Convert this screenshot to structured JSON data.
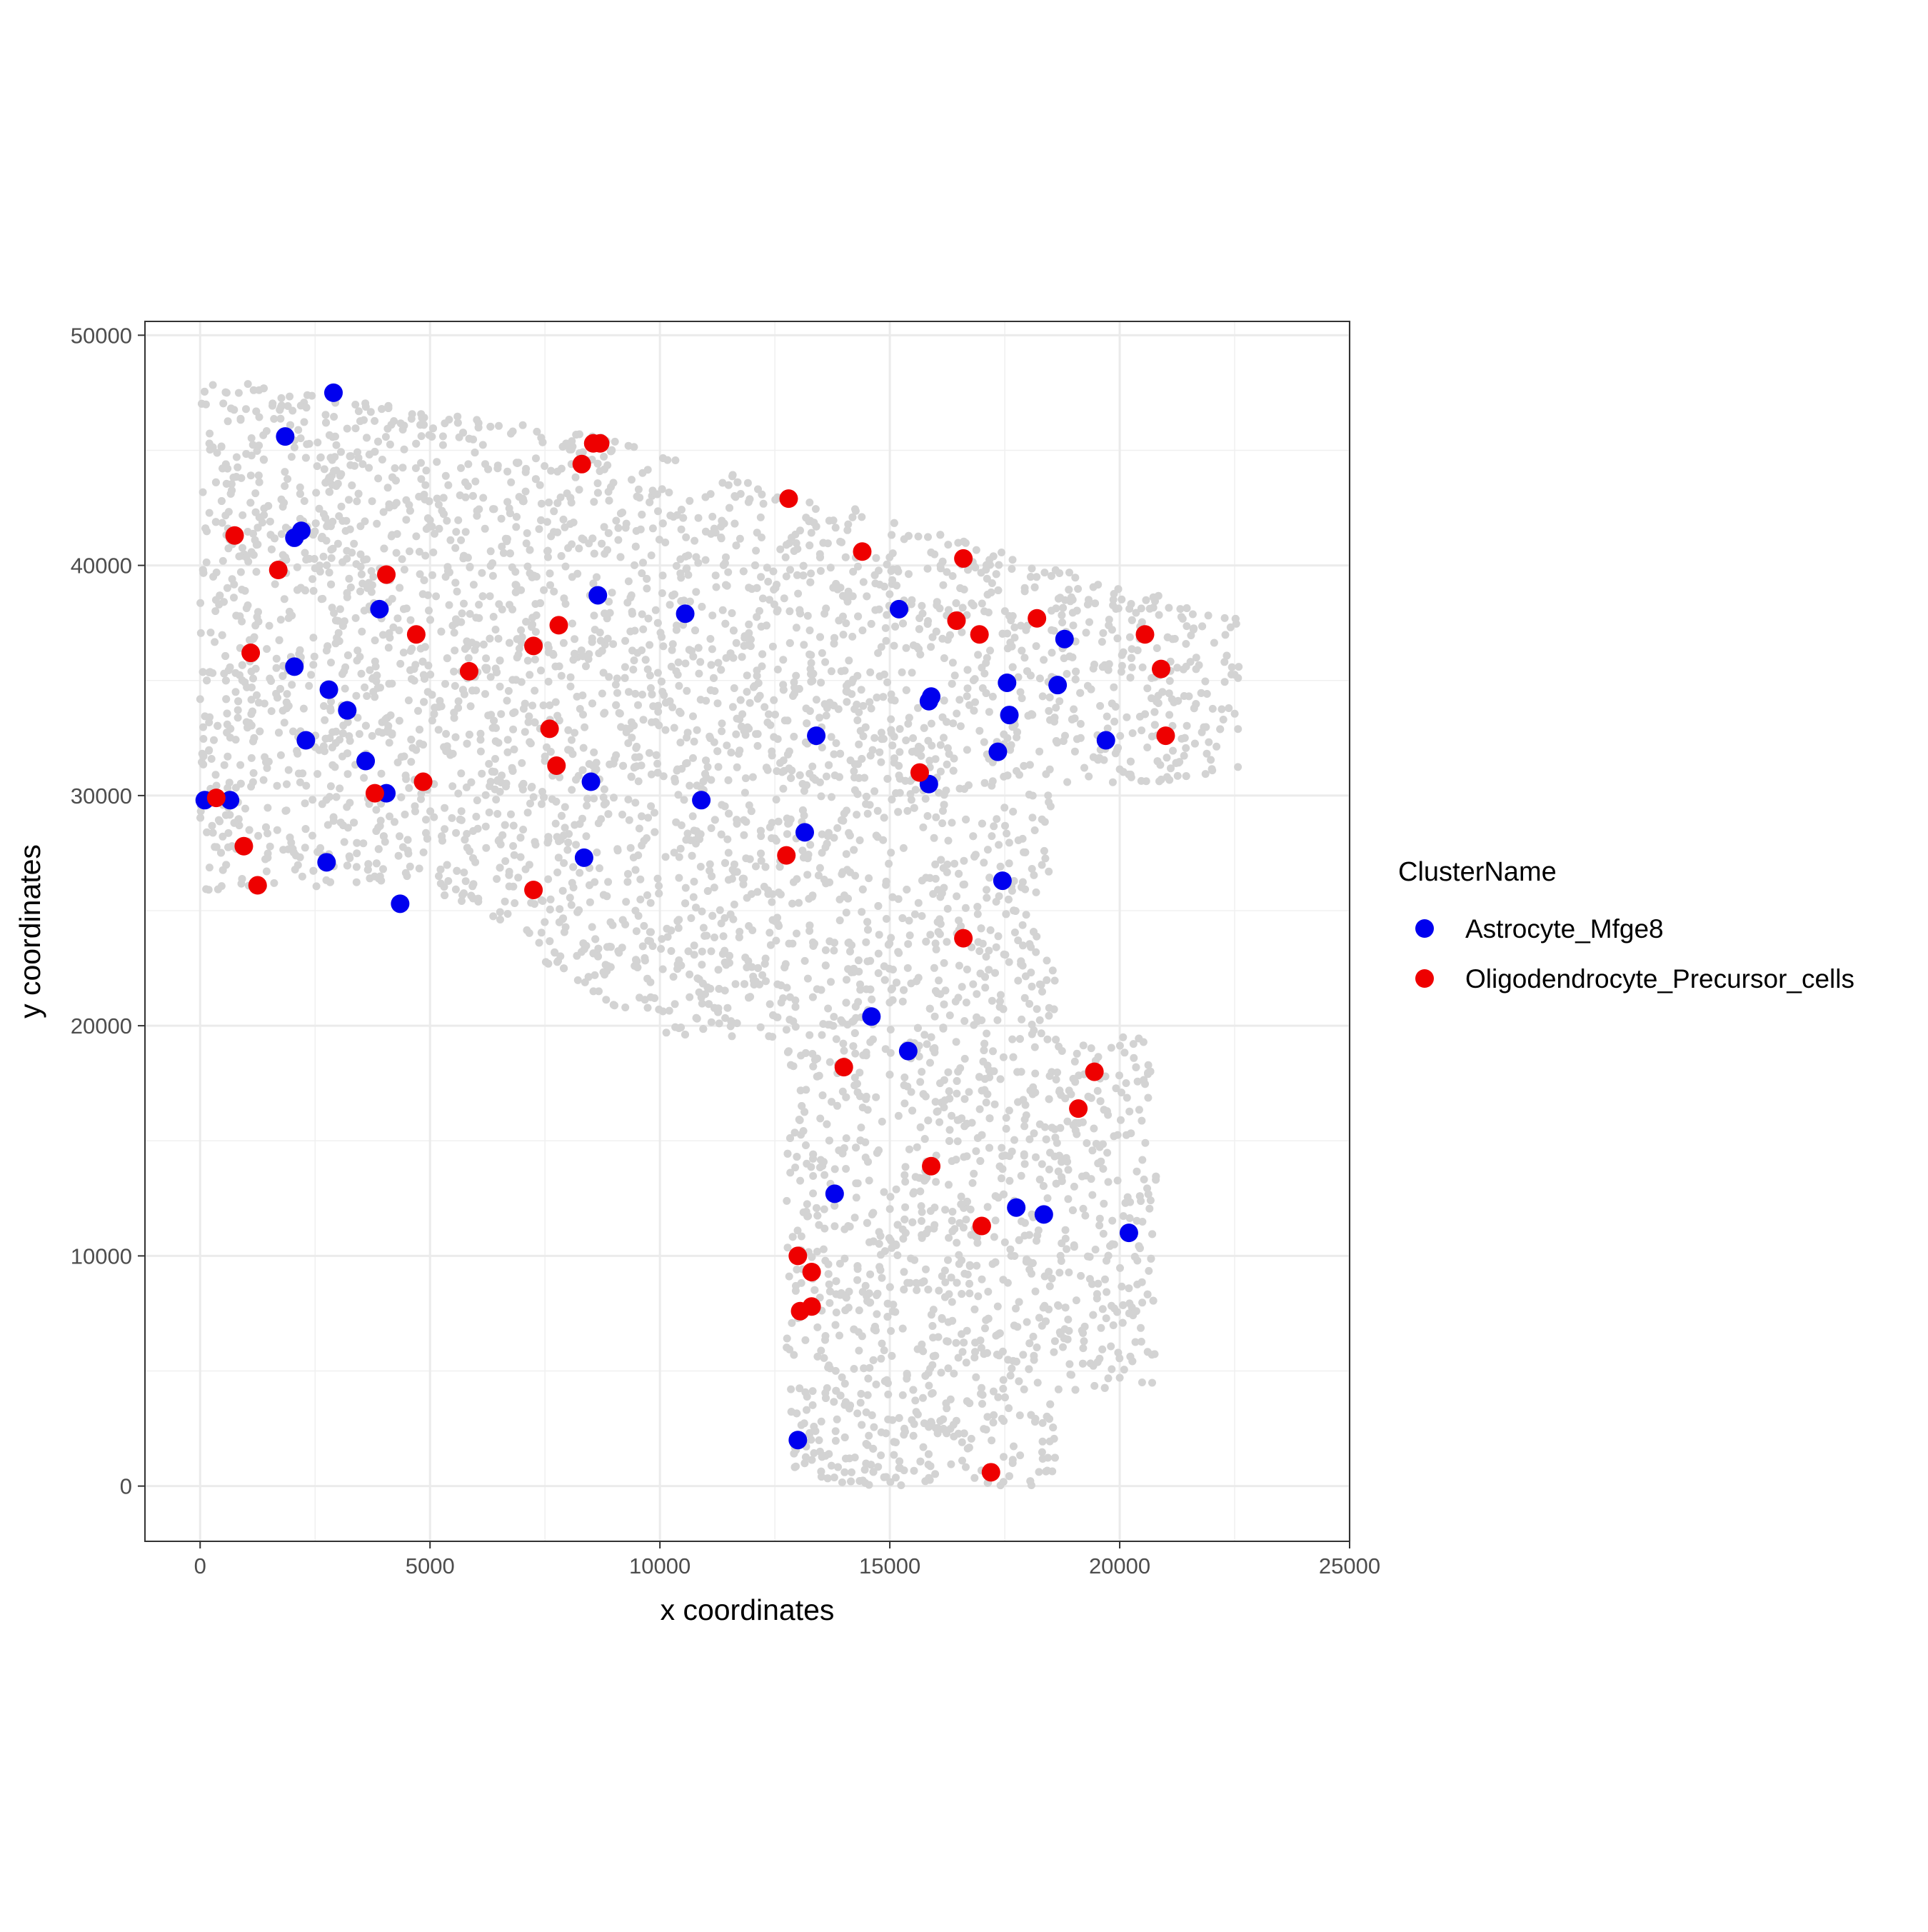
{
  "chart_data": {
    "type": "scatter",
    "title": "",
    "xlabel": "x coordinates",
    "ylabel": "y coordinates",
    "xlim": [
      -1200,
      25000
    ],
    "ylim": [
      -2400,
      50600
    ],
    "x_ticks": [
      0,
      5000,
      10000,
      15000,
      20000,
      25000
    ],
    "x_tick_labels": [
      "0",
      "5000",
      "10000",
      "15000",
      "20000",
      "25000"
    ],
    "y_ticks": [
      0,
      10000,
      20000,
      30000,
      40000,
      50000
    ],
    "y_tick_labels": [
      "0",
      "10000",
      "20000",
      "30000",
      "40000",
      "50000"
    ],
    "grid": true,
    "theme": "bw",
    "background_points_color": "#d3d3d3",
    "legend": {
      "title": "ClusterName",
      "position": "right",
      "entries": [
        "Astrocyte_Mfge8",
        "Oligodendrocyte_Precursor_cells"
      ]
    },
    "series": [
      {
        "name": "Astrocyte_Mfge8",
        "color": "#0000ee",
        "points": [
          [
            2900,
            47500
          ],
          [
            1850,
            45600
          ],
          [
            2200,
            41500
          ],
          [
            2050,
            41200
          ],
          [
            3900,
            38100
          ],
          [
            8650,
            38700
          ],
          [
            10550,
            37900
          ],
          [
            15200,
            38100
          ],
          [
            18800,
            36800
          ],
          [
            17550,
            34900
          ],
          [
            18650,
            34800
          ],
          [
            15900,
            34300
          ],
          [
            15850,
            34100
          ],
          [
            17600,
            33500
          ],
          [
            13400,
            32600
          ],
          [
            19700,
            32400
          ],
          [
            17350,
            31900
          ],
          [
            15850,
            30500
          ],
          [
            2050,
            35600
          ],
          [
            2800,
            34600
          ],
          [
            3200,
            33700
          ],
          [
            2300,
            32400
          ],
          [
            3600,
            31500
          ],
          [
            4050,
            30100
          ],
          [
            100,
            29800
          ],
          [
            650,
            29800
          ],
          [
            8500,
            30600
          ],
          [
            10900,
            29800
          ],
          [
            13150,
            28400
          ],
          [
            2750,
            27100
          ],
          [
            8350,
            27300
          ],
          [
            4350,
            25300
          ],
          [
            17450,
            26300
          ],
          [
            14600,
            20400
          ],
          [
            15400,
            18900
          ],
          [
            13800,
            12700
          ],
          [
            17750,
            12100
          ],
          [
            18350,
            11800
          ],
          [
            20200,
            11000
          ],
          [
            13000,
            2000
          ]
        ]
      },
      {
        "name": "Oligodendrocyte_Precursor_cells",
        "color": "#ee0000",
        "points": [
          [
            8550,
            45300
          ],
          [
            8700,
            45300
          ],
          [
            8300,
            44400
          ],
          [
            12800,
            42900
          ],
          [
            750,
            41300
          ],
          [
            14400,
            40600
          ],
          [
            16600,
            40300
          ],
          [
            1700,
            39800
          ],
          [
            4050,
            39600
          ],
          [
            16450,
            37600
          ],
          [
            18200,
            37700
          ],
          [
            7800,
            37400
          ],
          [
            16950,
            37000
          ],
          [
            20550,
            37000
          ],
          [
            4700,
            37000
          ],
          [
            7250,
            36500
          ],
          [
            1100,
            36200
          ],
          [
            20900,
            35500
          ],
          [
            5850,
            35400
          ],
          [
            7600,
            32900
          ],
          [
            21000,
            32600
          ],
          [
            7750,
            31300
          ],
          [
            15650,
            31000
          ],
          [
            4850,
            30600
          ],
          [
            3800,
            30100
          ],
          [
            350,
            29900
          ],
          [
            12750,
            27400
          ],
          [
            950,
            27800
          ],
          [
            1250,
            26100
          ],
          [
            7250,
            25900
          ],
          [
            16600,
            23800
          ],
          [
            14000,
            18200
          ],
          [
            19450,
            18000
          ],
          [
            19100,
            16400
          ],
          [
            15900,
            13900
          ],
          [
            17000,
            11300
          ],
          [
            13000,
            10000
          ],
          [
            13300,
            9300
          ],
          [
            13050,
            7600
          ],
          [
            13300,
            7800
          ],
          [
            17200,
            600
          ]
        ]
      }
    ]
  }
}
